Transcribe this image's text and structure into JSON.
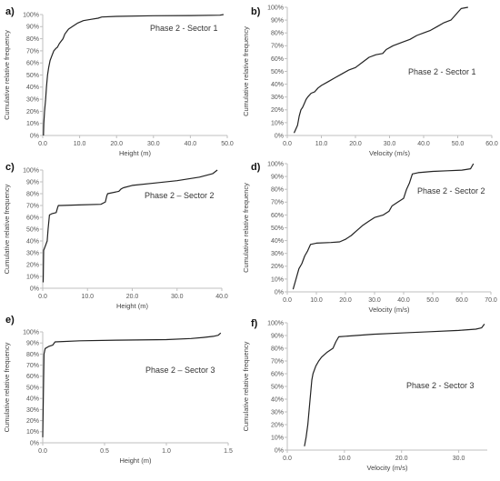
{
  "chart_data": [
    {
      "type": "line",
      "panel": "a)",
      "annotation": "Phase 2 - Sector 1",
      "xlabel": "Height  (m)",
      "ylabel": "Cumulative relative frequency",
      "xlim": [
        0,
        50
      ],
      "ylim": [
        0,
        100
      ],
      "xticks": [
        "0.0",
        "10.0",
        "20.0",
        "30.0",
        "40.0",
        "50.0"
      ],
      "yticks": [
        "0%",
        "10%",
        "20%",
        "30%",
        "40%",
        "50%",
        "60%",
        "70%",
        "80%",
        "90%",
        "100%"
      ],
      "grid": false,
      "series": [
        {
          "x": [
            0.2,
            0.3,
            0.5,
            0.8,
            1.0,
            1.3,
            1.6,
            2.0,
            2.5,
            3.0,
            3.6,
            4.0,
            4.5,
            5.0,
            5.5,
            6.0,
            7.0,
            8.0,
            9.5,
            11.0,
            13.0,
            15.0,
            16.0,
            20.0,
            30.0,
            40.0,
            48.0,
            49.0
          ],
          "y": [
            0,
            10,
            20,
            30,
            40,
            50,
            56,
            62,
            66,
            70,
            72,
            73,
            76,
            78,
            80,
            84,
            88,
            90,
            93,
            95,
            96,
            97,
            98,
            98.5,
            99,
            99.2,
            99.5,
            100
          ]
        }
      ]
    },
    {
      "type": "line",
      "panel": "b)",
      "annotation": "Phase 2 - Sector 1",
      "xlabel": "Velocity (m/s)",
      "ylabel": "Cumulative relative frequency",
      "xlim": [
        0,
        60
      ],
      "ylim": [
        0,
        100
      ],
      "xticks": [
        "0.0",
        "10.0",
        "20.0",
        "30.0",
        "40.0",
        "50.0",
        "60.0"
      ],
      "yticks": [
        "0%",
        "10%",
        "20%",
        "30%",
        "40%",
        "50%",
        "60%",
        "70%",
        "80%",
        "90%",
        "100%"
      ],
      "grid": false,
      "series": [
        {
          "x": [
            2.0,
            3.0,
            3.5,
            4.0,
            4.5,
            5.0,
            5.5,
            6.0,
            7.0,
            8.0,
            9.0,
            10.0,
            12.0,
            14.0,
            16.0,
            18.0,
            20.0,
            22.0,
            24.0,
            26.0,
            28.0,
            29.0,
            31.0,
            34.0,
            36.0,
            38.0,
            40.0,
            42.0,
            44.0,
            46.0,
            48.0,
            49.0,
            50.0,
            51.0,
            53.0
          ],
          "y": [
            2,
            8,
            15,
            20,
            22,
            25,
            28,
            30,
            33,
            34,
            37,
            39,
            42,
            45,
            48,
            51,
            53,
            57,
            61,
            63,
            64,
            67,
            70,
            73,
            75,
            78,
            80,
            82,
            85,
            88,
            90,
            93,
            96,
            99,
            100
          ]
        }
      ]
    },
    {
      "type": "line",
      "panel": "c)",
      "annotation": "Phase 2 – Sector 2",
      "xlabel": "Height  (m)",
      "ylabel": "Cumulative relative frequency",
      "xlim": [
        0,
        40
      ],
      "ylim": [
        0,
        100
      ],
      "xticks": [
        "0.0",
        "10.0",
        "20.0",
        "30.0",
        "40.0"
      ],
      "yticks": [
        "0%",
        "10%",
        "20%",
        "30%",
        "40%",
        "50%",
        "60%",
        "70%",
        "80%",
        "90%",
        "100%"
      ],
      "grid": false,
      "series": [
        {
          "x": [
            0.1,
            0.2,
            0.5,
            1.0,
            1.2,
            1.5,
            2.0,
            3.0,
            3.3,
            3.5,
            4.0,
            8.0,
            13.0,
            14.0,
            14.3,
            14.5,
            17.0,
            17.5,
            18.0,
            20.0,
            25.0,
            30.0,
            35.0,
            38.0,
            39.0
          ],
          "y": [
            5,
            32,
            35,
            40,
            50,
            62,
            63,
            64,
            68,
            70,
            70,
            70.5,
            71,
            73,
            78,
            80,
            82,
            84,
            85,
            87,
            89,
            91,
            94,
            97,
            100
          ]
        }
      ]
    },
    {
      "type": "line",
      "panel": "d)",
      "annotation": "Phase 2 - Sector 2",
      "xlabel": "Velocity (m/s)",
      "ylabel": "Cumulative relative frequency",
      "xlim": [
        0,
        70
      ],
      "ylim": [
        0,
        100
      ],
      "xticks": [
        "0.0",
        "10.0",
        "20.0",
        "30.0",
        "40.0",
        "50.0",
        "60.0",
        "70.0"
      ],
      "yticks": [
        "0%",
        "10%",
        "20%",
        "30%",
        "40%",
        "50%",
        "60%",
        "70%",
        "80%",
        "90%",
        "100%"
      ],
      "grid": false,
      "series": [
        {
          "x": [
            2.0,
            3.0,
            4.0,
            5.0,
            6.0,
            7.0,
            8.0,
            10.0,
            15.0,
            18.0,
            20.0,
            22.0,
            24.0,
            26.0,
            28.0,
            30.0,
            33.0,
            35.0,
            36.0,
            38.0,
            40.0,
            41.0,
            42.0,
            43.0,
            45.0,
            50.0,
            55.0,
            60.0,
            63.0,
            64.0
          ],
          "y": [
            2,
            10,
            18,
            22,
            28,
            32,
            37,
            38,
            38.5,
            39,
            41,
            44,
            48,
            52,
            55,
            58,
            60,
            63,
            67,
            70,
            73,
            80,
            85,
            92,
            93,
            94,
            94.5,
            95,
            96,
            100
          ]
        }
      ]
    },
    {
      "type": "line",
      "panel": "e)",
      "annotation": "Phase 2 – Sector 3",
      "xlabel": "Height  (m)",
      "ylabel": "Cumulative relative frequency",
      "xlim": [
        0,
        1.5
      ],
      "ylim": [
        0,
        100
      ],
      "xticks": [
        "0.0",
        "0.5",
        "1.0",
        "1.5"
      ],
      "yticks": [
        "0%",
        "10%",
        "20%",
        "30%",
        "40%",
        "50%",
        "60%",
        "70%",
        "80%",
        "90%",
        "100%"
      ],
      "grid": false,
      "series": [
        {
          "x": [
            0.0,
            0.01,
            0.02,
            0.05,
            0.08,
            0.1,
            0.3,
            0.6,
            1.0,
            1.2,
            1.3,
            1.38,
            1.42,
            1.44
          ],
          "y": [
            5,
            80,
            85,
            87,
            88,
            91,
            92,
            92.5,
            93,
            94,
            95,
            96,
            97,
            99
          ]
        }
      ]
    },
    {
      "type": "line",
      "panel": "f)",
      "annotation": "Phase 2 - Sector 3",
      "xlabel": "Velocity (m/s)",
      "ylabel": "Cumulative relative frequency",
      "xlim": [
        0,
        35
      ],
      "ylim": [
        0,
        100
      ],
      "xticks": [
        "0.0",
        "10.0",
        "20.0",
        "30.0"
      ],
      "yticks": [
        "0%",
        "10%",
        "20%",
        "30%",
        "40%",
        "50%",
        "60%",
        "70%",
        "80%",
        "90%",
        "100%"
      ],
      "grid": false,
      "series": [
        {
          "x": [
            3.0,
            3.3,
            3.6,
            4.0,
            4.3,
            4.5,
            5.0,
            5.5,
            6.0,
            7.0,
            8.0,
            8.5,
            9.0,
            12.0,
            15.0,
            20.0,
            25.0,
            30.0,
            33.0,
            34.0,
            34.5
          ],
          "y": [
            3,
            10,
            20,
            40,
            55,
            60,
            66,
            70,
            73,
            77,
            80,
            85,
            89,
            90,
            91,
            92,
            93,
            94,
            95,
            96,
            99
          ]
        }
      ]
    }
  ]
}
